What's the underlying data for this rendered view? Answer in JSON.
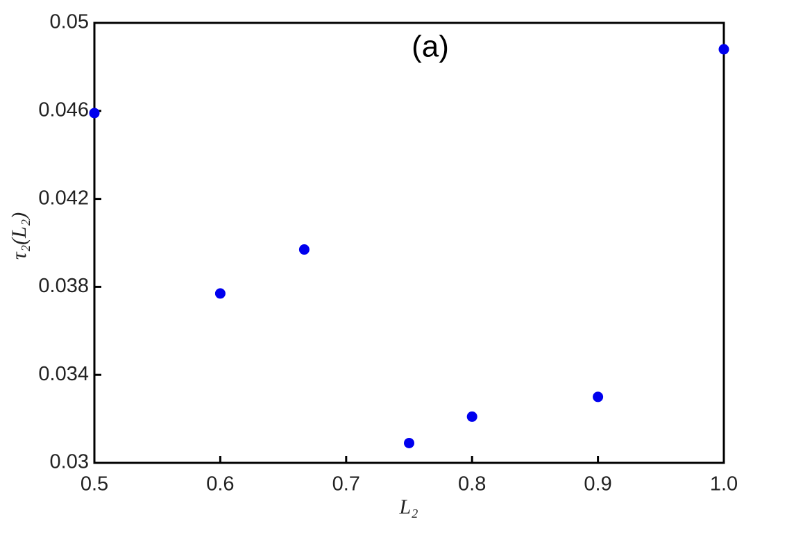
{
  "chart_data": {
    "type": "scatter",
    "annotation": "(a)",
    "x_label": "L₂",
    "y_label": "τ₂(L₂)",
    "color": "#0000ee",
    "x": [
      0.5,
      0.6,
      0.6667,
      0.75,
      0.8,
      0.9,
      1.0
    ],
    "values": [
      0.0459,
      0.0377,
      0.0397,
      0.0309,
      0.0321,
      0.033,
      0.0488
    ],
    "xlim": [
      0.5,
      1.0
    ],
    "ylim": [
      0.03,
      0.05
    ],
    "xticks": [
      0.5,
      0.6,
      0.7,
      0.8,
      0.9,
      {
        "value": 1.0,
        "label": "1.0"
      }
    ],
    "yticks": [
      0.03,
      0.034,
      0.038,
      0.042,
      0.046,
      0.05
    ]
  }
}
